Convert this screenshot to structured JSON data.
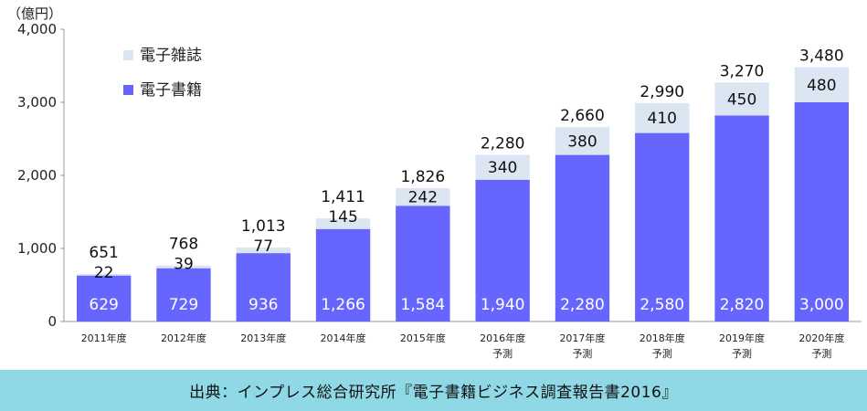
{
  "chart_data": {
    "type": "bar",
    "stacked": true,
    "unit_label": "（億円）",
    "ylim": [
      0,
      4000
    ],
    "yticks": [
      "0",
      "1,000",
      "2,000",
      "3,000",
      "4,000"
    ],
    "ytick_values": [
      0,
      1000,
      2000,
      3000,
      4000
    ],
    "categories": [
      [
        "2011年度"
      ],
      [
        "2012年度"
      ],
      [
        "2013年度"
      ],
      [
        "2014年度"
      ],
      [
        "2015年度"
      ],
      [
        "2016年度",
        "予測"
      ],
      [
        "2017年度",
        "予測"
      ],
      [
        "2018年度",
        "予測"
      ],
      [
        "2019年度",
        "予測"
      ],
      [
        "2020年度",
        "予測"
      ]
    ],
    "series": [
      {
        "name": "電子書籍",
        "color": "#6666ff",
        "values": [
          629,
          729,
          936,
          1266,
          1584,
          1940,
          2280,
          2580,
          2820,
          3000
        ],
        "labels": [
          "629",
          "729",
          "936",
          "1,266",
          "1,584",
          "1,940",
          "2,280",
          "2,580",
          "2,820",
          "3,000"
        ]
      },
      {
        "name": "電子雑誌",
        "color": "#dce6f2",
        "values": [
          22,
          39,
          77,
          145,
          242,
          340,
          380,
          410,
          450,
          480
        ],
        "labels": [
          "22",
          "39",
          "77",
          "145",
          "242",
          "340",
          "380",
          "410",
          "450",
          "480"
        ]
      }
    ],
    "totals": [
      "651",
      "768",
      "1,013",
      "1,411",
      "1,826",
      "2,280",
      "2,660",
      "2,990",
      "3,270",
      "3,480"
    ],
    "total_values": [
      651,
      768,
      1013,
      1411,
      1826,
      2280,
      2660,
      2990,
      3270,
      3480
    ],
    "legend": {
      "placement": "top-left"
    },
    "grid": false
  },
  "footer": {
    "source": "出典：インプレス総合研究所『電子書籍ビジネス調査報告書2016』"
  }
}
